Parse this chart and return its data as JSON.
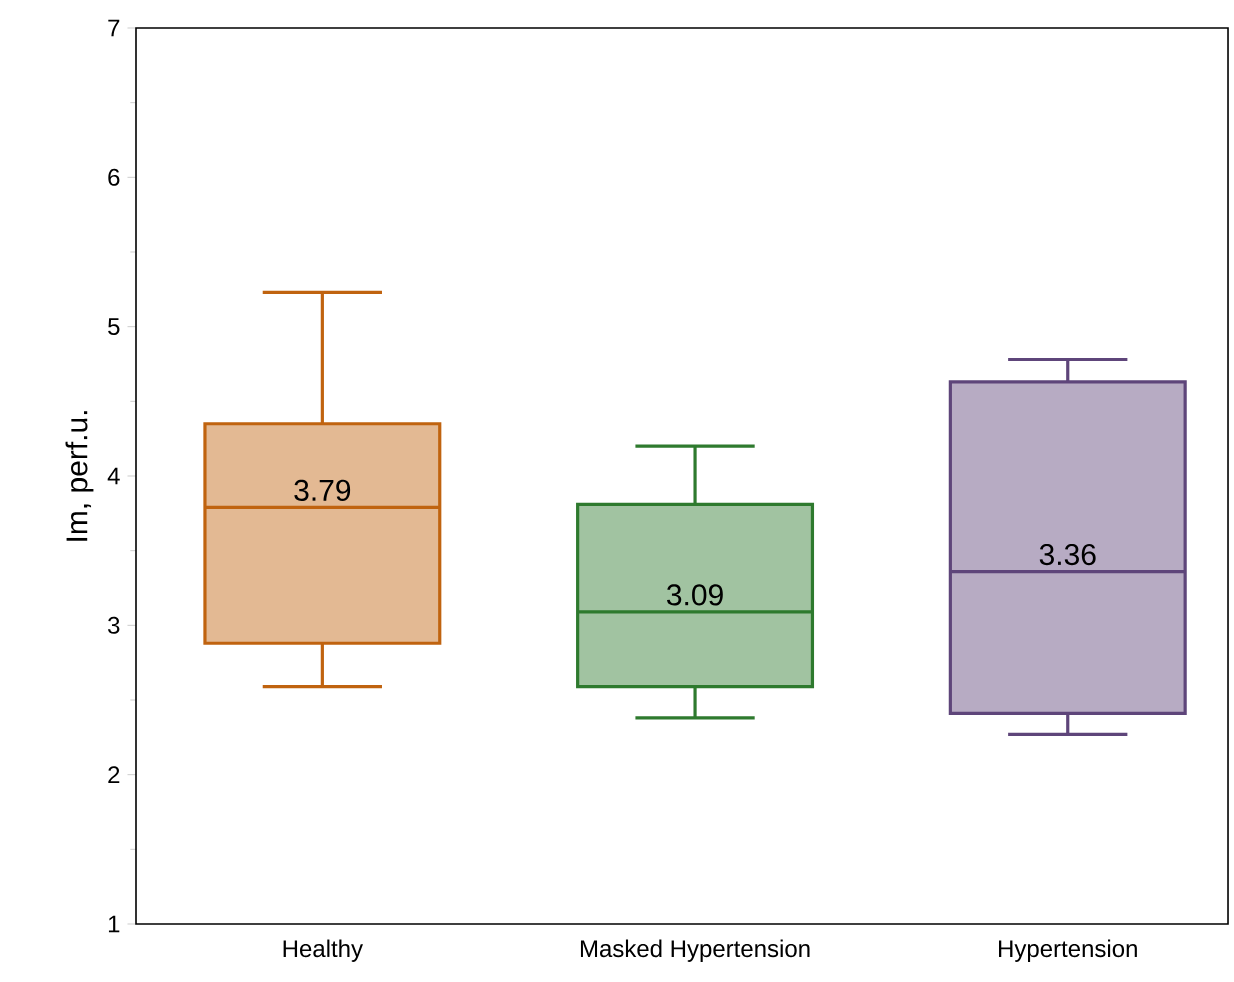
{
  "chart_data": {
    "type": "box",
    "ylabel": "Im, perf.u.",
    "categories": [
      "Healthy",
      "Masked Hypertension",
      "Hypertension"
    ],
    "boxes": [
      {
        "low": 2.59,
        "q1": 2.88,
        "median": 3.79,
        "q3": 4.35,
        "high": 5.23
      },
      {
        "low": 2.38,
        "q1": 2.59,
        "median": 3.09,
        "q3": 3.81,
        "high": 4.2
      },
      {
        "low": 2.27,
        "q1": 2.41,
        "median": 3.36,
        "q3": 4.63,
        "high": 4.78
      }
    ],
    "colors": [
      "#c0630f",
      "#2e7a2e",
      "#5e457a"
    ],
    "ylim": [
      1,
      7
    ],
    "yticks": [
      1,
      2,
      3,
      4,
      5,
      6,
      7
    ],
    "grid": false,
    "value_labels": [
      "3.79",
      "3.09",
      "3.36"
    ]
  }
}
